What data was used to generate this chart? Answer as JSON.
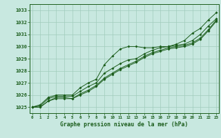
{
  "title": "Graphe pression niveau de la mer (hPa)",
  "xlabel_ticks": [
    0,
    1,
    2,
    3,
    4,
    5,
    6,
    7,
    8,
    9,
    10,
    11,
    12,
    13,
    14,
    15,
    16,
    17,
    18,
    19,
    20,
    21,
    22,
    23
  ],
  "ylim": [
    1024.5,
    1033.5
  ],
  "xlim": [
    -0.3,
    23.3
  ],
  "yticks": [
    1025,
    1026,
    1027,
    1028,
    1029,
    1030,
    1031,
    1032,
    1033
  ],
  "bg_color": "#c8e8e0",
  "grid_color": "#a0ccbc",
  "line_color": "#1a5c1a",
  "title_color": "#1a5c1a",
  "series": [
    [
      1025.0,
      1025.2,
      1025.8,
      1026.0,
      1026.0,
      1026.0,
      1026.6,
      1027.0,
      1027.3,
      1028.5,
      1029.2,
      1029.8,
      1030.0,
      1030.0,
      1029.9,
      1029.9,
      1030.0,
      1030.0,
      1030.2,
      1030.5,
      1031.1,
      1031.5,
      1032.2,
      1032.8
    ],
    [
      1025.0,
      1025.1,
      1025.7,
      1025.9,
      1025.9,
      1025.9,
      1026.3,
      1026.7,
      1027.0,
      1027.8,
      1028.2,
      1028.6,
      1028.9,
      1029.0,
      1029.4,
      1029.7,
      1029.9,
      1030.0,
      1030.1,
      1030.2,
      1030.5,
      1031.0,
      1031.7,
      1032.3
    ],
    [
      1025.0,
      1025.0,
      1025.5,
      1025.8,
      1025.8,
      1025.7,
      1026.1,
      1026.4,
      1026.8,
      1027.4,
      1027.8,
      1028.2,
      1028.5,
      1028.8,
      1029.2,
      1029.5,
      1029.7,
      1029.9,
      1030.0,
      1030.1,
      1030.3,
      1030.7,
      1031.4,
      1032.2
    ],
    [
      1025.0,
      1025.0,
      1025.5,
      1025.7,
      1025.7,
      1025.7,
      1026.0,
      1026.3,
      1026.7,
      1027.3,
      1027.7,
      1028.1,
      1028.4,
      1028.7,
      1029.1,
      1029.4,
      1029.6,
      1029.8,
      1029.9,
      1030.0,
      1030.2,
      1030.6,
      1031.3,
      1032.1
    ]
  ]
}
